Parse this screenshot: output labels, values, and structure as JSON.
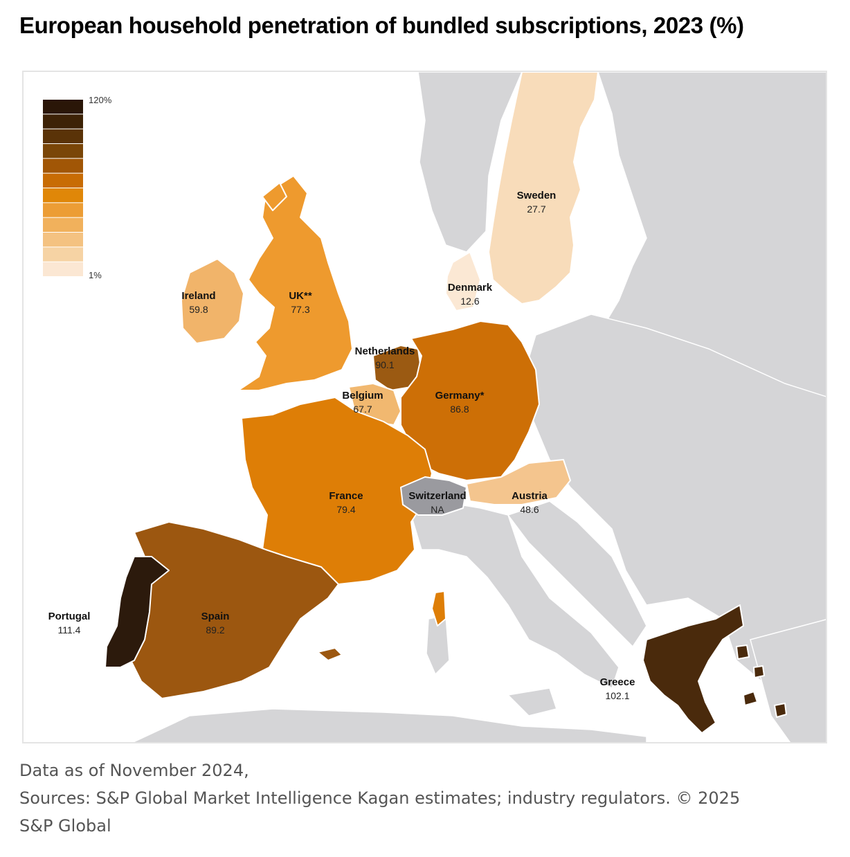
{
  "title": "European household penetration of bundled subscriptions, 2023 (%)",
  "legend": {
    "max_label": "120%",
    "min_label": "1%",
    "steps": [
      "#2a1608",
      "#3d2206",
      "#5a3308",
      "#7a4608",
      "#a15606",
      "#c86c04",
      "#e08708",
      "#ec9d35",
      "#f1b15c",
      "#f4c281",
      "#f6d3a4",
      "#fbe7d3"
    ]
  },
  "colors": {
    "land_gray": "#d5d5d7",
    "switzerland_na": "#9a9a9f"
  },
  "chart_data": {
    "type": "map",
    "regions": [
      {
        "name": "Sweden",
        "value": "27.7",
        "color": "#f8dcba"
      },
      {
        "name": "Denmark",
        "value": "12.6",
        "color": "#fbe8d4"
      },
      {
        "name": "Ireland",
        "value": "59.8",
        "color": "#f1b46a"
      },
      {
        "name": "UK**",
        "value": "77.3",
        "color": "#ee9a2e"
      },
      {
        "name": "Netherlands",
        "value": "90.1",
        "color": "#9b5a12"
      },
      {
        "name": "Belgium",
        "value": "67.7",
        "color": "#f1b870"
      },
      {
        "name": "Germany*",
        "value": "86.8",
        "color": "#cd6f06"
      },
      {
        "name": "France",
        "value": "79.4",
        "color": "#de7e06"
      },
      {
        "name": "Switzerland",
        "value": "NA",
        "color": "#9a9a9f"
      },
      {
        "name": "Austria",
        "value": "48.6",
        "color": "#f4c58e"
      },
      {
        "name": "Spain",
        "value": "89.2",
        "color": "#9c5710"
      },
      {
        "name": "Portugal",
        "value": "111.4",
        "color": "#2c1a0c"
      },
      {
        "name": "Greece",
        "value": "102.1",
        "color": "#4a2a0c"
      }
    ],
    "scale_range": [
      1,
      120
    ]
  },
  "footer": {
    "line1": "Data as of November 2024,",
    "line2": "Sources: S&P Global Market Intelligence Kagan estimates; industry regulators. © 2025",
    "line3": "S&P Global"
  }
}
